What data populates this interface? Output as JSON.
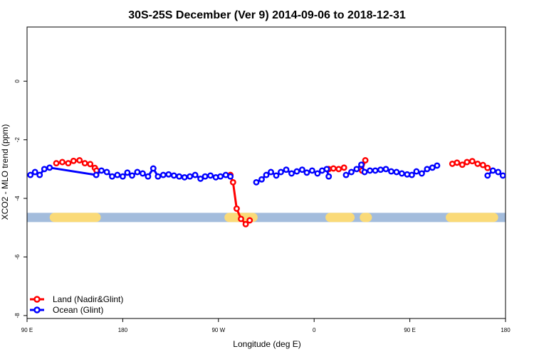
{
  "chart_data": {
    "type": "line",
    "title": "30S-25S December (Ver 9)   2014-09-06 to 2018-12-31",
    "xlabel": "Longitude (deg E)",
    "ylabel": "XCO2 - MLO trend (ppm)",
    "xlim": [
      90,
      450
    ],
    "ylim": [
      -8.1,
      1.85
    ],
    "x_ticks": [
      {
        "value": 90,
        "label": "90 E"
      },
      {
        "value": 162,
        "label": "180"
      },
      {
        "value": 234,
        "label": "90 W"
      },
      {
        "value": 306,
        "label": "0"
      },
      {
        "value": 378,
        "label": "90 E"
      },
      {
        "value": 450,
        "label": "180"
      }
    ],
    "y_ticks": [
      {
        "value": 0,
        "label": "0"
      },
      {
        "value": -2,
        "label": "-2"
      },
      {
        "value": -4,
        "label": "-4"
      },
      {
        "value": -6,
        "label": "-6"
      },
      {
        "value": -8,
        "label": "-8"
      }
    ],
    "grid": false,
    "legend_position": "bottom-left",
    "surface_band": {
      "y": -4.65,
      "ocean_color": "#a3bcdc",
      "land_color": "#fada78",
      "land_segments": [
        [
          110.5,
          142.0
        ],
        [
          242.0,
          260.0
        ],
        [
          318.0,
          333.0
        ],
        [
          343.8,
          346.0
        ],
        [
          408.5,
          441.0
        ]
      ]
    },
    "series": [
      {
        "name": "Land (Nadir&Glint)",
        "color": "#ff0000",
        "segments": [
          [
            [
              112.0,
              -2.8
            ],
            [
              116.5,
              -2.76
            ],
            [
              121.0,
              -2.8
            ],
            [
              125.0,
              -2.72
            ],
            [
              129.5,
              -2.7
            ],
            [
              133.5,
              -2.8
            ],
            [
              137.5,
              -2.83
            ],
            [
              141.0,
              -2.96
            ],
            [
              142.3,
              -3.05
            ]
          ],
          [
            [
              243.0,
              -3.2
            ],
            [
              245.0,
              -3.45
            ],
            [
              247.7,
              -4.35
            ],
            [
              251.0,
              -4.7
            ],
            [
              254.5,
              -4.88
            ],
            [
              257.5,
              -4.75
            ]
          ],
          [
            [
              317.0,
              -3.0
            ],
            [
              320.5,
              -2.98
            ],
            [
              324.5,
              -3.0
            ],
            [
              328.5,
              -2.95
            ]
          ],
          [
            [
              342.0,
              -3.05
            ],
            [
              344.5,
              -2.7
            ]
          ],
          [
            [
              410.0,
              -2.82
            ],
            [
              413.5,
              -2.78
            ],
            [
              417.5,
              -2.85
            ],
            [
              421.0,
              -2.76
            ],
            [
              425.0,
              -2.73
            ],
            [
              429.0,
              -2.82
            ],
            [
              433.0,
              -2.86
            ],
            [
              436.5,
              -2.96
            ]
          ]
        ]
      },
      {
        "name": "Ocean (Glint)",
        "color": "#0000ff",
        "segments": [
          [
            [
              92.5,
              -3.2
            ],
            [
              96.0,
              -3.1
            ],
            [
              99.5,
              -3.2
            ],
            [
              103.0,
              -3.0
            ],
            [
              107.0,
              -2.95
            ],
            [
              142.0,
              -3.2
            ],
            [
              146.0,
              -3.05
            ],
            [
              150.0,
              -3.1
            ],
            [
              154.0,
              -3.25
            ],
            [
              158.0,
              -3.2
            ],
            [
              162.0,
              -3.25
            ],
            [
              165.5,
              -3.12
            ],
            [
              169.0,
              -3.22
            ],
            [
              173.0,
              -3.1
            ],
            [
              177.0,
              -3.15
            ],
            [
              181.0,
              -3.25
            ],
            [
              185.0,
              -2.98
            ],
            [
              188.5,
              -3.25
            ],
            [
              192.5,
              -3.2
            ],
            [
              196.5,
              -3.18
            ],
            [
              200.5,
              -3.22
            ],
            [
              204.5,
              -3.25
            ],
            [
              208.5,
              -3.28
            ],
            [
              212.5,
              -3.25
            ],
            [
              216.5,
              -3.2
            ],
            [
              220.5,
              -3.33
            ],
            [
              224.0,
              -3.25
            ],
            [
              228.0,
              -3.22
            ],
            [
              232.0,
              -3.28
            ],
            [
              235.5,
              -3.25
            ],
            [
              239.5,
              -3.2
            ],
            [
              243.0,
              -3.25
            ]
          ],
          [
            [
              262.5,
              -3.45
            ],
            [
              266.5,
              -3.35
            ],
            [
              270.0,
              -3.2
            ],
            [
              273.5,
              -3.1
            ],
            [
              277.5,
              -3.22
            ],
            [
              281.0,
              -3.1
            ],
            [
              285.0,
              -3.02
            ],
            [
              289.0,
              -3.15
            ],
            [
              293.0,
              -3.08
            ],
            [
              297.0,
              -3.02
            ],
            [
              300.5,
              -3.12
            ],
            [
              304.5,
              -3.05
            ],
            [
              308.5,
              -3.15
            ],
            [
              312.0,
              -3.05
            ],
            [
              315.5,
              -3.0
            ],
            [
              317.0,
              -3.25
            ]
          ],
          [
            [
              330.0,
              -3.2
            ],
            [
              334.0,
              -3.1
            ],
            [
              338.0,
              -3.0
            ],
            [
              341.5,
              -2.85
            ],
            [
              344.0,
              -3.1
            ],
            [
              348.0,
              -3.05
            ],
            [
              352.0,
              -3.05
            ],
            [
              356.0,
              -3.02
            ],
            [
              360.0,
              -3.0
            ],
            [
              364.0,
              -3.08
            ],
            [
              368.0,
              -3.1
            ],
            [
              372.0,
              -3.15
            ],
            [
              376.0,
              -3.18
            ],
            [
              379.5,
              -3.2
            ],
            [
              383.0,
              -3.08
            ],
            [
              387.0,
              -3.15
            ],
            [
              391.0,
              -3.0
            ],
            [
              395.0,
              -2.95
            ],
            [
              398.5,
              -2.88
            ]
          ],
          [
            [
              436.5,
              -3.22
            ],
            [
              440.5,
              -3.05
            ],
            [
              444.5,
              -3.1
            ],
            [
              448.0,
              -3.22
            ],
            [
              452.0,
              -3.18
            ],
            [
              455.5,
              -3.25
            ]
          ]
        ]
      }
    ]
  }
}
